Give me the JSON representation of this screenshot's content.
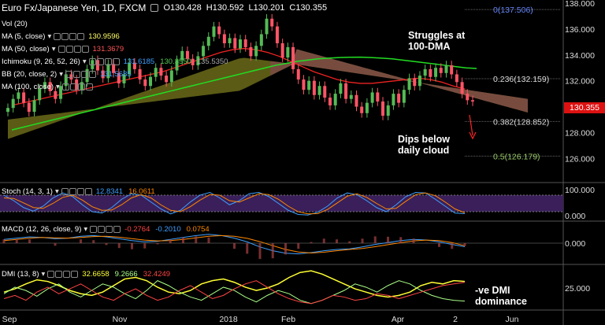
{
  "header": {
    "symbol": "Euro Fx/Japanese Yen, 1D, FXCM",
    "open": "O130.428",
    "high": "H130.592",
    "low": "L130.201",
    "close": "C130.355"
  },
  "legends": {
    "vol": {
      "label": "Vol (20)"
    },
    "ma5": {
      "label": "MA (5, close)",
      "value": "130.9596",
      "color": "#ffff66"
    },
    "ma50": {
      "label": "MA (50, close)",
      "value": "131.3679",
      "color": "#ff5555"
    },
    "ichimoku": {
      "label": "Ichimoku (9, 26, 52, 26)",
      "v1": "131.6185",
      "v2": "130.3550",
      "v3": "135.5350",
      "c1": "#3fa0ff",
      "c2": "#55cc55",
      "c3": "#aaaaaa"
    },
    "bb": {
      "label": "BB (20, close, 2)",
      "value": "131.5685",
      "color": "#3fa0ff"
    },
    "ma100": {
      "label": "MA (100, close)",
      "value": "",
      "color": "#22dd22"
    },
    "stoch": {
      "label": "Stoch (14, 3, 1)",
      "k": "12.8341",
      "d": "16.0611",
      "kc": "#3fa0ff",
      "dc": "#ff8800"
    },
    "macd": {
      "label": "MACD (12, 26, close, 9)",
      "a": "-0.2764",
      "b": "-0.2010",
      "c": "0.0754",
      "ac": "#ff4444",
      "bc": "#3fa0ff",
      "cc": "#ff8800"
    },
    "dmi": {
      "label": "DMI (13, 8)",
      "a": "32.6658",
      "b": "9.2666",
      "c": "32.4249",
      "ac": "#ffff33",
      "bc": "#aaff88",
      "cc": "#ff4444"
    }
  },
  "annotations": {
    "struggles": [
      "Struggles at",
      "100-DMA"
    ],
    "dips": [
      "Dips below",
      "daily cloud"
    ],
    "dmi": [
      "-ve DMI",
      "dominance"
    ]
  },
  "price_tag": {
    "value": "130.355",
    "color": "#dd1111"
  },
  "colors": {
    "bull": "#55bb55",
    "bear": "#ff5566",
    "cloud_bull": "#6b6b1a",
    "cloud_bear": "#7a4a44",
    "ma100": "#22dd22",
    "ma50": "#ee2222",
    "stoch_band": "#3a1f5a"
  },
  "chart_data": [
    {
      "type": "line",
      "title": "",
      "y_axis": {
        "min": 124.5,
        "max": 138.0,
        "ticks": [
          "126.000",
          "128.000",
          "130.000",
          "132.000",
          "134.000",
          "136.000",
          "138.000"
        ],
        "tick_values": [
          126,
          128,
          130,
          132,
          134,
          136,
          138
        ]
      },
      "x_axis": {
        "labels": [
          "Sep",
          "Nov",
          "2018",
          "Feb",
          "Apr",
          "2",
          "Jun"
        ],
        "label_positions": [
          0.0,
          0.25,
          0.43,
          0.62,
          0.85,
          0.98,
          1.12
        ]
      },
      "fib_levels": [
        {
          "label": "0(137.506)",
          "value": 137.506,
          "color": "#6688ff"
        },
        {
          "label": "0.236(132.159)",
          "value": 132.159,
          "color": "#dddddd"
        },
        {
          "label": "0.382(128.852)",
          "value": 128.852,
          "color": "#dddddd"
        },
        {
          "label": "0.5(126.179)",
          "value": 126.179,
          "color": "#99cc66"
        }
      ],
      "closes": [
        129.9,
        130.6,
        131.1,
        130.3,
        129.6,
        130.5,
        131.4,
        131.9,
        131.2,
        130.6,
        131.6,
        132.5,
        132.1,
        131.3,
        131.9,
        132.9,
        133.6,
        132.8,
        132.2,
        133.3,
        132.6,
        131.8,
        132.5,
        133.4,
        132.9,
        132.1,
        131.6,
        132.3,
        133.0,
        132.4,
        131.9,
        132.8,
        133.6,
        134.3,
        133.7,
        133.2,
        133.9,
        134.7,
        135.4,
        136.2,
        135.6,
        134.9,
        135.3,
        134.5,
        135.2,
        134.6,
        133.9,
        134.7,
        135.6,
        136.8,
        136.2,
        134.9,
        133.8,
        134.6,
        132.9,
        132.1,
        131.3,
        132.0,
        130.9,
        131.6,
        130.7,
        130.1,
        131.0,
        131.8,
        130.6,
        130.9,
        130.0,
        129.5,
        130.3,
        131.1,
        130.4,
        129.3,
        130.1,
        131.0,
        130.3,
        131.3,
        132.2,
        131.6,
        132.4,
        132.9,
        132.3,
        133.0,
        132.6,
        133.2,
        132.5,
        131.9,
        131.0,
        130.5,
        130.4
      ],
      "ma100": [
        128.2,
        128.4,
        128.6,
        128.8,
        129.0,
        129.2,
        129.4,
        129.6,
        129.8,
        130.0,
        130.2,
        130.4,
        130.6,
        130.8,
        131.0,
        131.2,
        131.4,
        131.6,
        131.8,
        132.0,
        132.2,
        132.4,
        132.6,
        132.8,
        133.0,
        133.2,
        133.35,
        133.5,
        133.6,
        133.7,
        133.75,
        133.8,
        133.82,
        133.83,
        133.8,
        133.75,
        133.7,
        133.6,
        133.5,
        133.4,
        133.3,
        133.2,
        133.1,
        133.0,
        132.95
      ],
      "ma50": [
        130.1,
        130.3,
        130.5,
        130.7,
        130.9,
        131.1,
        131.3,
        131.5,
        131.7,
        131.9,
        132.1,
        132.3,
        132.5,
        132.7,
        133.0,
        133.3,
        133.6,
        133.9,
        134.2,
        134.4,
        134.5,
        134.4,
        134.2,
        133.9,
        133.5,
        133.1,
        132.7,
        132.4,
        132.1,
        131.9,
        131.8,
        131.8,
        131.9,
        132.0,
        132.1,
        132.2,
        132.1,
        131.9,
        131.6,
        131.37
      ]
    },
    {
      "type": "line",
      "title": "",
      "y_axis": {
        "min": 0,
        "max": 100,
        "ticks": [
          "0.000",
          "100.000"
        ]
      },
      "series": [
        {
          "values": [
            80,
            60,
            35,
            22,
            40,
            70,
            88,
            75,
            45,
            20,
            15,
            35,
            65,
            85,
            80,
            55,
            30,
            12,
            25,
            55,
            80,
            90,
            70,
            45,
            60,
            85,
            90,
            75,
            50,
            25,
            10,
            8,
            18,
            40,
            70,
            88,
            82,
            60,
            35,
            20,
            45,
            75,
            90,
            88,
            65,
            40,
            15,
            13
          ]
        },
        {
          "values": [
            70,
            68,
            52,
            35,
            32,
            50,
            72,
            80,
            62,
            38,
            25,
            26,
            45,
            70,
            82,
            70,
            45,
            25,
            20,
            38,
            62,
            82,
            80,
            60,
            55,
            70,
            85,
            82,
            65,
            40,
            20,
            12,
            13,
            28,
            52,
            76,
            85,
            72,
            50,
            30,
            32,
            58,
            82,
            88,
            78,
            55,
            30,
            16
          ]
        }
      ]
    },
    {
      "type": "line",
      "title": "",
      "y_axis": {
        "ticks": [
          "0.000"
        ]
      },
      "series": [
        {
          "values": [
            0.3,
            0.4,
            0.5,
            0.45,
            0.35,
            0.4,
            0.55,
            0.6,
            0.5,
            0.35,
            0.2,
            0.1,
            0.15,
            0.3,
            0.45,
            0.6,
            0.7,
            0.6,
            0.4,
            0.1,
            -0.3,
            -0.6,
            -0.8,
            -0.85,
            -0.75,
            -0.6,
            -0.5,
            -0.45,
            -0.3,
            -0.1,
            0.05,
            0.2,
            0.3,
            0.25,
            0.1,
            -0.1,
            -0.28
          ]
        },
        {
          "values": [
            0.2,
            0.3,
            0.4,
            0.45,
            0.42,
            0.4,
            0.45,
            0.52,
            0.55,
            0.48,
            0.36,
            0.24,
            0.18,
            0.2,
            0.3,
            0.42,
            0.55,
            0.6,
            0.55,
            0.38,
            0.12,
            -0.2,
            -0.5,
            -0.7,
            -0.78,
            -0.72,
            -0.6,
            -0.5,
            -0.42,
            -0.28,
            -0.12,
            0.04,
            0.18,
            0.24,
            0.2,
            0.05,
            -0.2
          ]
        }
      ]
    },
    {
      "type": "line",
      "title": "",
      "y_axis": {
        "min": 0,
        "max": 50,
        "ticks": [
          "25.000"
        ],
        "tick_values": [
          25
        ]
      },
      "series": [
        {
          "values": [
            20,
            24,
            30,
            35,
            33,
            28,
            22,
            18,
            16,
            20,
            28,
            36,
            38,
            34,
            26,
            20,
            18,
            22,
            30,
            34,
            36,
            32,
            26,
            22,
            25,
            30,
            38,
            44,
            46,
            42,
            36,
            30,
            24,
            20,
            16,
            14,
            16,
            20,
            28,
            32,
            30,
            34,
            33
          ]
        },
        {
          "values": [
            18,
            26,
            22,
            15,
            24,
            30,
            20,
            14,
            22,
            30,
            26,
            18,
            12,
            22,
            34,
            28,
            20,
            14,
            10,
            18,
            26,
            22,
            14,
            8,
            16,
            22,
            18,
            10,
            6,
            10,
            16,
            22,
            30,
            26,
            20,
            28,
            34,
            30,
            22,
            16,
            12,
            10,
            9
          ]
        },
        {
          "values": [
            12,
            16,
            10,
            20,
            26,
            18,
            24,
            30,
            22,
            14,
            10,
            18,
            24,
            16,
            10,
            14,
            22,
            28,
            20,
            12,
            16,
            24,
            30,
            34,
            26,
            18,
            12,
            8,
            6,
            10,
            16,
            14,
            10,
            12,
            18,
            16,
            12,
            16,
            20,
            24,
            28,
            30,
            32
          ]
        }
      ]
    }
  ]
}
